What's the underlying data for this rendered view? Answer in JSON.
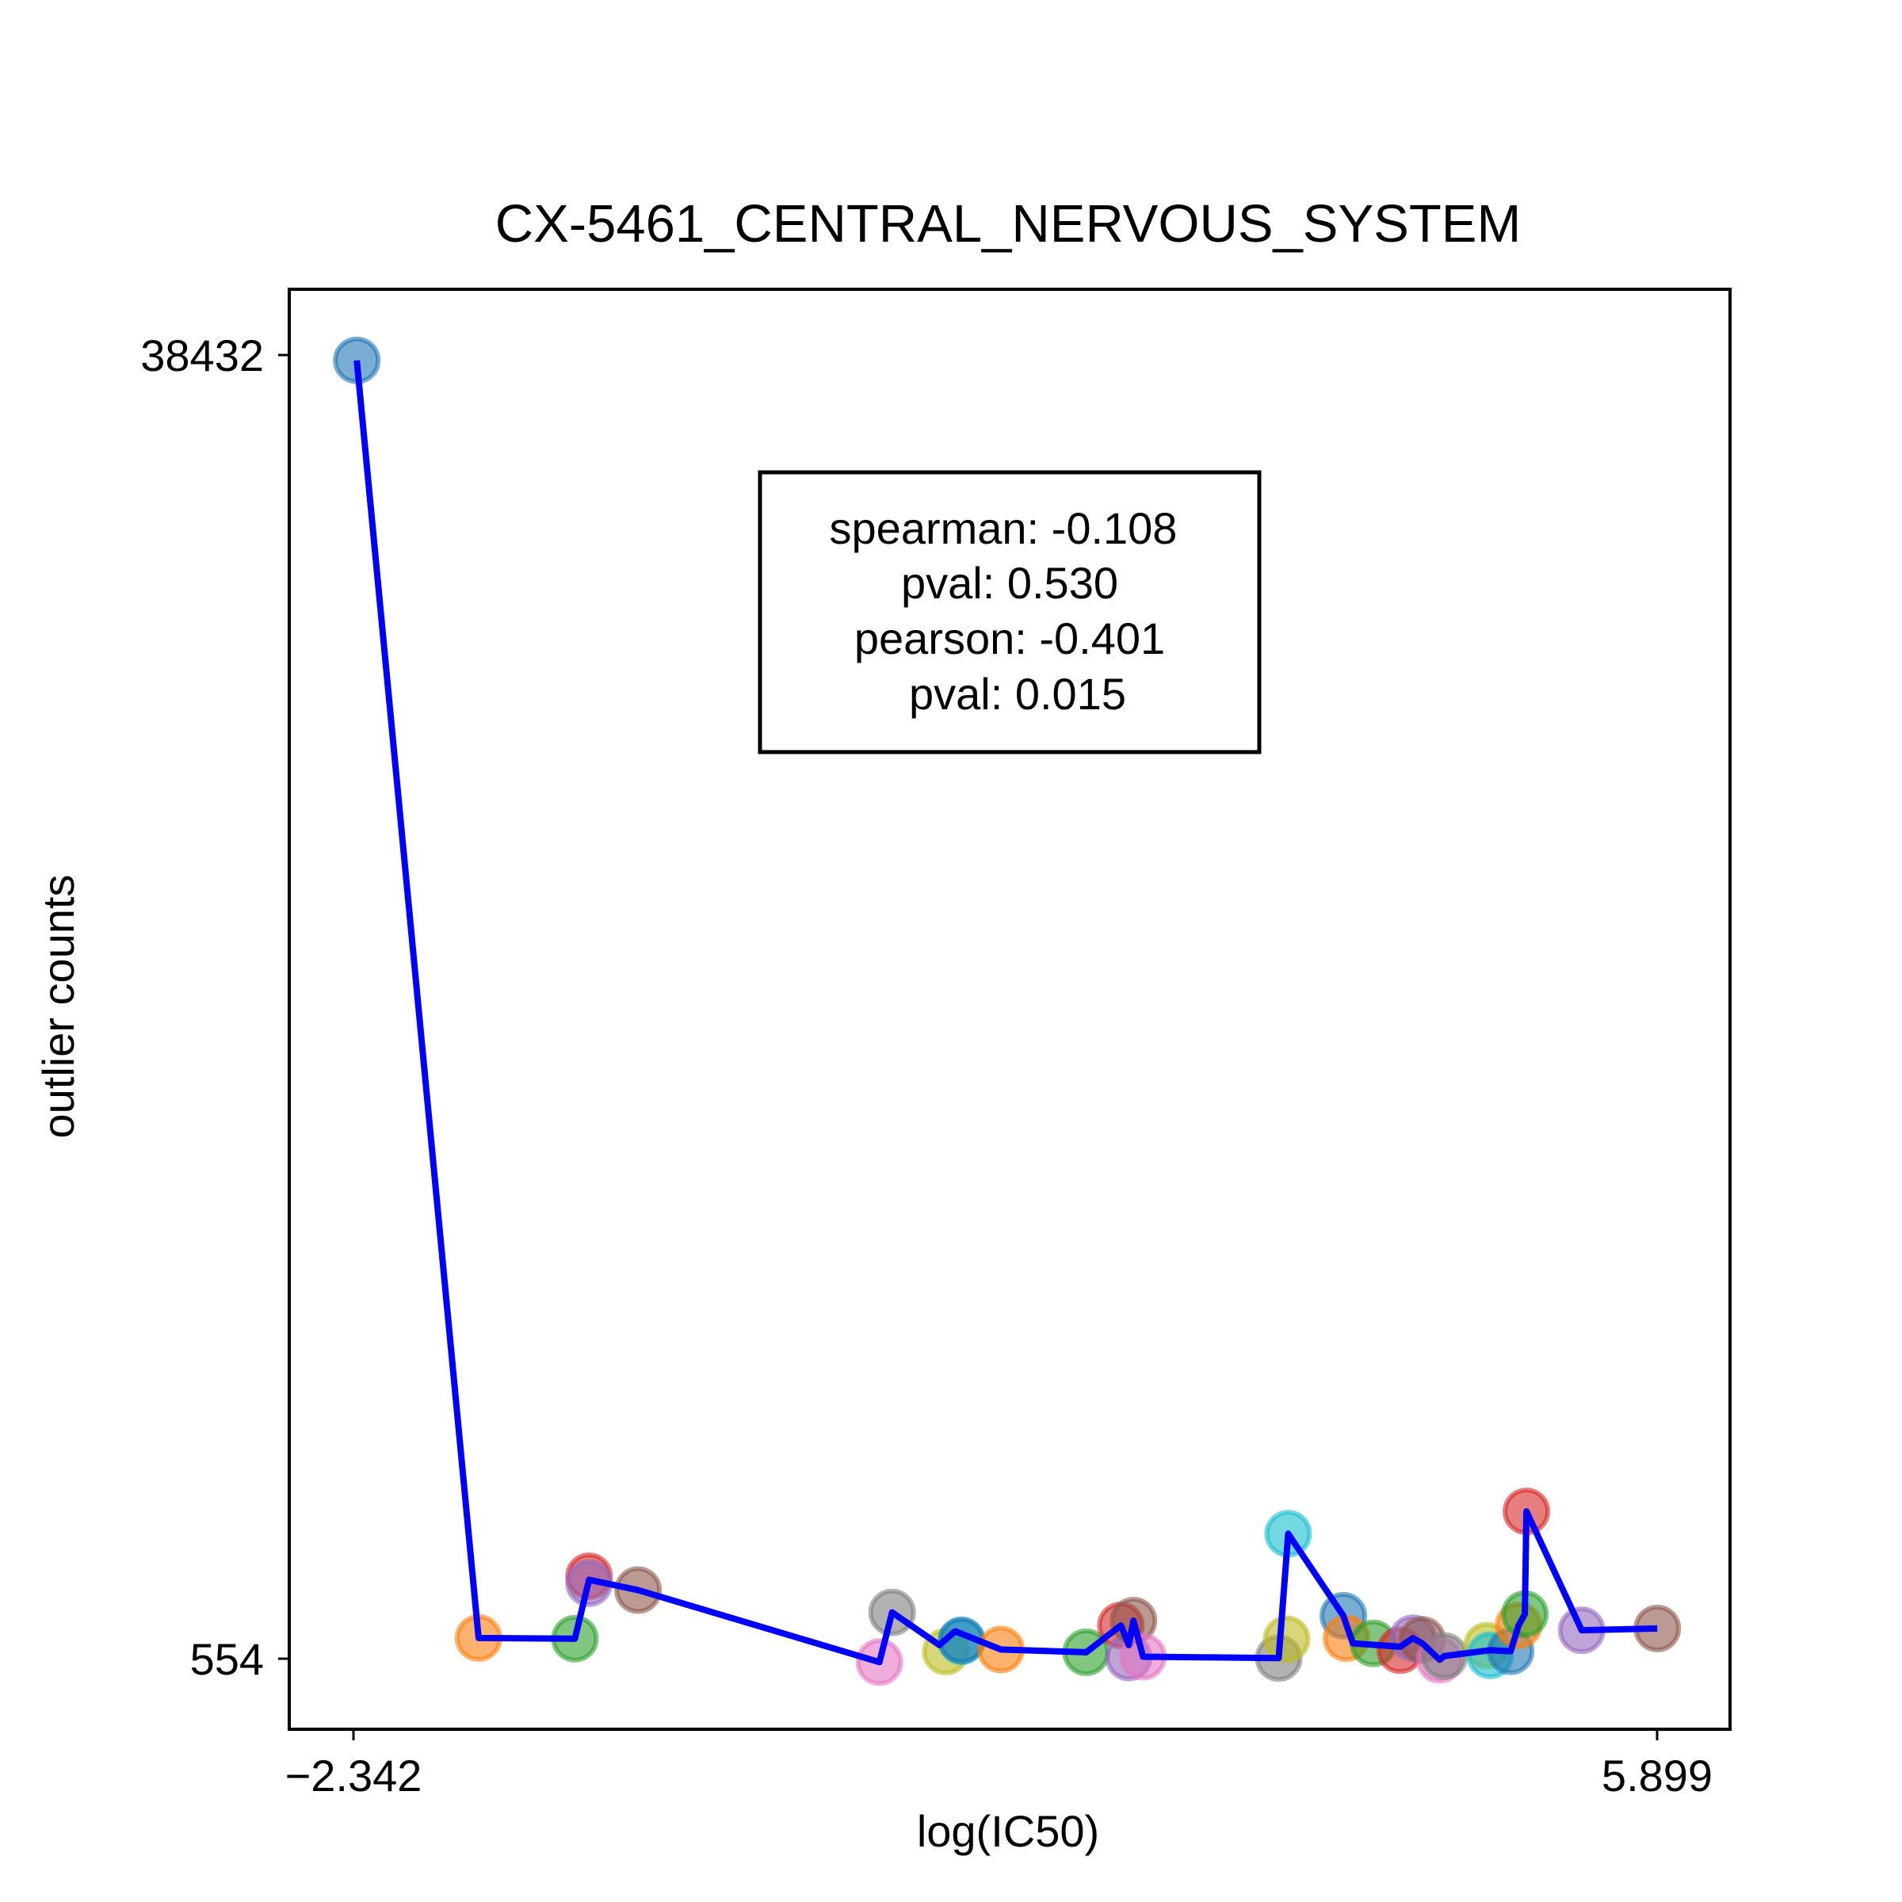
{
  "chart_data": {
    "type": "scatter",
    "title": "CX-5461_CENTRAL_NERVOUS_SYSTEM",
    "xlabel": "log(IC50)",
    "ylabel": "outlier counts",
    "x_ticks": [
      "−2.342",
      "5.899"
    ],
    "y_ticks": [
      "38432",
      "554"
    ],
    "xlim": [
      -2.77,
      6.36
    ],
    "ylim": [
      -1400,
      40500
    ],
    "grid": false,
    "legend": "none",
    "stats_box": {
      "lines": [
        "spearman: -0.108",
        "pval: 0.530",
        "pearson: -0.401",
        "pval: 0.015"
      ],
      "placement": "upper-center"
    },
    "line_color": "#0000ff",
    "points": [
      {
        "x": -2.342,
        "y": 38432,
        "color": "#1f77b4"
      },
      {
        "x": -1.57,
        "y": 1255,
        "color": "#ff7f0e"
      },
      {
        "x": -0.96,
        "y": 1235,
        "color": "#2ca02c"
      },
      {
        "x": -0.87,
        "y": 3050,
        "color": "#d62728"
      },
      {
        "x": -0.87,
        "y": 2850,
        "color": "#9467bd"
      },
      {
        "x": -0.56,
        "y": 2650,
        "color": "#8c564b"
      },
      {
        "x": 0.97,
        "y": 554,
        "color": "#e377c2"
      },
      {
        "x": 1.05,
        "y": 2000,
        "color": "#7f7f7f"
      },
      {
        "x": 1.39,
        "y": 860,
        "color": "#bcbd22"
      },
      {
        "x": 1.49,
        "y": 1155,
        "color": "#17becf"
      },
      {
        "x": 1.49,
        "y": 1190,
        "color": "#1f77b4"
      },
      {
        "x": 1.74,
        "y": 920,
        "color": "#ff7f0e"
      },
      {
        "x": 2.28,
        "y": 840,
        "color": "#2ca02c"
      },
      {
        "x": 2.5,
        "y": 1620,
        "color": "#d62728"
      },
      {
        "x": 2.55,
        "y": 690,
        "color": "#9467bd"
      },
      {
        "x": 2.58,
        "y": 1760,
        "color": "#8c564b"
      },
      {
        "x": 2.64,
        "y": 710,
        "color": "#e377c2"
      },
      {
        "x": 3.5,
        "y": 670,
        "color": "#7f7f7f"
      },
      {
        "x": 3.55,
        "y": 1220,
        "color": "#bcbd22"
      },
      {
        "x": 3.56,
        "y": 4290,
        "color": "#17becf"
      },
      {
        "x": 3.91,
        "y": 1900,
        "color": "#1f77b4"
      },
      {
        "x": 3.93,
        "y": 1250,
        "color": "#ff7f0e"
      },
      {
        "x": 4.1,
        "y": 1100,
        "color": "#2ca02c"
      },
      {
        "x": 4.27,
        "y": 900,
        "color": "#d62728"
      },
      {
        "x": 4.35,
        "y": 1250,
        "color": "#9467bd"
      },
      {
        "x": 4.41,
        "y": 1200,
        "color": "#8c564b"
      },
      {
        "x": 4.52,
        "y": 620,
        "color": "#e377c2"
      },
      {
        "x": 4.55,
        "y": 730,
        "color": "#7f7f7f"
      },
      {
        "x": 4.82,
        "y": 1030,
        "color": "#bcbd22"
      },
      {
        "x": 4.84,
        "y": 750,
        "color": "#17becf"
      },
      {
        "x": 4.97,
        "y": 870,
        "color": "#1f77b4"
      },
      {
        "x": 5.02,
        "y": 1620,
        "color": "#ff7f0e"
      },
      {
        "x": 5.06,
        "y": 1950,
        "color": "#2ca02c"
      },
      {
        "x": 5.07,
        "y": 4940,
        "color": "#d62728"
      },
      {
        "x": 5.42,
        "y": 1480,
        "color": "#9467bd"
      },
      {
        "x": 5.899,
        "y": 1530,
        "color": "#8c564b"
      }
    ],
    "line_path": [
      [
        -2.342,
        38432
      ],
      [
        -1.57,
        1255
      ],
      [
        -0.96,
        1235
      ],
      [
        -0.87,
        2950
      ],
      [
        -0.56,
        2650
      ],
      [
        0.97,
        554
      ],
      [
        1.05,
        2000
      ],
      [
        1.35,
        1050
      ],
      [
        1.45,
        1450
      ],
      [
        1.74,
        920
      ],
      [
        2.28,
        840
      ],
      [
        2.5,
        1620
      ],
      [
        2.55,
        1050
      ],
      [
        2.58,
        1760
      ],
      [
        2.64,
        710
      ],
      [
        3.5,
        670
      ],
      [
        3.56,
        4290
      ],
      [
        3.91,
        1900
      ],
      [
        3.97,
        1100
      ],
      [
        4.27,
        1000
      ],
      [
        4.35,
        1250
      ],
      [
        4.41,
        1100
      ],
      [
        4.52,
        620
      ],
      [
        4.55,
        730
      ],
      [
        4.84,
        900
      ],
      [
        4.97,
        870
      ],
      [
        5.02,
        1620
      ],
      [
        5.06,
        1950
      ],
      [
        5.07,
        4940
      ],
      [
        5.42,
        1480
      ],
      [
        5.899,
        1530
      ]
    ]
  }
}
